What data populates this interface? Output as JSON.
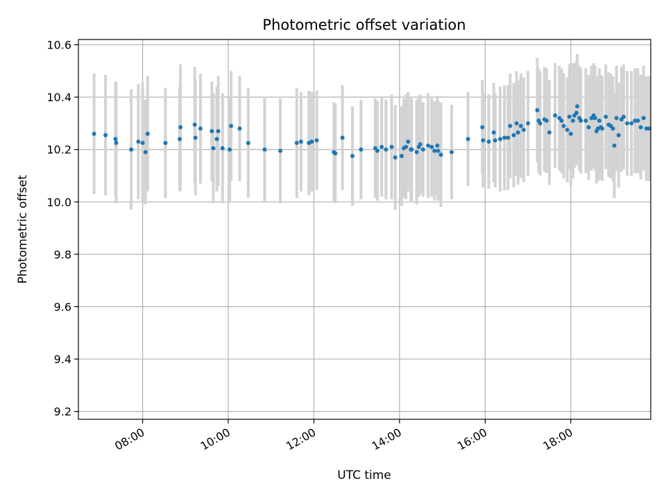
{
  "chart_data": {
    "type": "scatter",
    "title": "Photometric offset variation",
    "xlabel": "UTC time",
    "ylabel": "Photometric offset",
    "x_unit": "hours UTC",
    "xlim": [
      "06:30",
      "19:52"
    ],
    "ylim": [
      9.17,
      10.62
    ],
    "x_ticks": [
      "08:00",
      "10:00",
      "12:00",
      "14:00",
      "16:00",
      "18:00"
    ],
    "y_ticks": [
      "9.2",
      "9.4",
      "9.6",
      "9.8",
      "10.0",
      "10.2",
      "10.4",
      "10.6"
    ],
    "grid": true,
    "marker_color": "#1f77b4",
    "errorbar_color": "#d3d3d3",
    "points": [
      {
        "t": "06:52",
        "y": 10.26,
        "err": 0.23
      },
      {
        "t": "07:08",
        "y": 10.255,
        "err": 0.23
      },
      {
        "t": "07:22",
        "y": 10.24,
        "err": 0.22
      },
      {
        "t": "07:23",
        "y": 10.225,
        "err": 0.23
      },
      {
        "t": "07:44",
        "y": 10.2,
        "err": 0.23
      },
      {
        "t": "07:54",
        "y": 10.23,
        "err": 0.22
      },
      {
        "t": "08:00",
        "y": 10.225,
        "err": 0.23
      },
      {
        "t": "08:04",
        "y": 10.19,
        "err": 0.2
      },
      {
        "t": "08:07",
        "y": 10.26,
        "err": 0.22
      },
      {
        "t": "08:32",
        "y": 10.225,
        "err": 0.21
      },
      {
        "t": "08:52",
        "y": 10.24,
        "err": 0.2
      },
      {
        "t": "08:53",
        "y": 10.285,
        "err": 0.24
      },
      {
        "t": "09:13",
        "y": 10.295,
        "err": 0.22
      },
      {
        "t": "09:14",
        "y": 10.245,
        "err": 0.22
      },
      {
        "t": "09:21",
        "y": 10.28,
        "err": 0.21
      },
      {
        "t": "09:37",
        "y": 10.27,
        "err": 0.19
      },
      {
        "t": "09:39",
        "y": 10.205,
        "err": 0.21
      },
      {
        "t": "09:44",
        "y": 10.24,
        "err": 0.2
      },
      {
        "t": "09:46",
        "y": 10.27,
        "err": 0.21
      },
      {
        "t": "09:52",
        "y": 10.205,
        "err": 0.21
      },
      {
        "t": "10:02",
        "y": 10.2,
        "err": 0.2
      },
      {
        "t": "10:04",
        "y": 10.29,
        "err": 0.21
      },
      {
        "t": "10:16",
        "y": 10.28,
        "err": 0.2
      },
      {
        "t": "10:28",
        "y": 10.225,
        "err": 0.21
      },
      {
        "t": "10:51",
        "y": 10.2,
        "err": 0.2
      },
      {
        "t": "11:13",
        "y": 10.195,
        "err": 0.2
      },
      {
        "t": "11:36",
        "y": 10.225,
        "err": 0.21
      },
      {
        "t": "11:42",
        "y": 10.23,
        "err": 0.19
      },
      {
        "t": "11:53",
        "y": 10.225,
        "err": 0.2
      },
      {
        "t": "11:57",
        "y": 10.23,
        "err": 0.19
      },
      {
        "t": "12:04",
        "y": 10.235,
        "err": 0.19
      },
      {
        "t": "12:28",
        "y": 10.19,
        "err": 0.19
      },
      {
        "t": "12:30",
        "y": 10.185,
        "err": 0.19
      },
      {
        "t": "12:40",
        "y": 10.245,
        "err": 0.2
      },
      {
        "t": "12:54",
        "y": 10.175,
        "err": 0.19
      },
      {
        "t": "13:06",
        "y": 10.2,
        "err": 0.19
      },
      {
        "t": "13:26",
        "y": 10.205,
        "err": 0.19
      },
      {
        "t": "13:29",
        "y": 10.195,
        "err": 0.19
      },
      {
        "t": "13:35",
        "y": 10.21,
        "err": 0.19
      },
      {
        "t": "13:41",
        "y": 10.2,
        "err": 0.19
      },
      {
        "t": "13:49",
        "y": 10.21,
        "err": 0.2
      },
      {
        "t": "13:54",
        "y": 10.17,
        "err": 0.2
      },
      {
        "t": "14:03",
        "y": 10.175,
        "err": 0.19
      },
      {
        "t": "14:06",
        "y": 10.205,
        "err": 0.19
      },
      {
        "t": "14:09",
        "y": 10.21,
        "err": 0.2
      },
      {
        "t": "14:12",
        "y": 10.23,
        "err": 0.19
      },
      {
        "t": "14:16",
        "y": 10.2,
        "err": 0.2
      },
      {
        "t": "14:17",
        "y": 10.2,
        "err": 0.19
      },
      {
        "t": "14:24",
        "y": 10.19,
        "err": 0.2
      },
      {
        "t": "14:27",
        "y": 10.21,
        "err": 0.19
      },
      {
        "t": "14:29",
        "y": 10.22,
        "err": 0.19
      },
      {
        "t": "14:33",
        "y": 10.2,
        "err": 0.18
      },
      {
        "t": "14:40",
        "y": 10.215,
        "err": 0.2
      },
      {
        "t": "14:45",
        "y": 10.21,
        "err": 0.19
      },
      {
        "t": "14:49",
        "y": 10.195,
        "err": 0.19
      },
      {
        "t": "14:53",
        "y": 10.215,
        "err": 0.19
      },
      {
        "t": "14:54",
        "y": 10.195,
        "err": 0.19
      },
      {
        "t": "14:58",
        "y": 10.18,
        "err": 0.2
      },
      {
        "t": "15:13",
        "y": 10.19,
        "err": 0.18
      },
      {
        "t": "15:36",
        "y": 10.24,
        "err": 0.18
      },
      {
        "t": "15:56",
        "y": 10.285,
        "err": 0.18
      },
      {
        "t": "15:57",
        "y": 10.235,
        "err": 0.18
      },
      {
        "t": "16:05",
        "y": 10.23,
        "err": 0.18
      },
      {
        "t": "16:12",
        "y": 10.265,
        "err": 0.19
      },
      {
        "t": "16:14",
        "y": 10.235,
        "err": 0.18
      },
      {
        "t": "16:21",
        "y": 10.24,
        "err": 0.2
      },
      {
        "t": "16:27",
        "y": 10.245,
        "err": 0.2
      },
      {
        "t": "16:32",
        "y": 10.245,
        "err": 0.2
      },
      {
        "t": "16:35",
        "y": 10.29,
        "err": 0.2
      },
      {
        "t": "16:40",
        "y": 10.255,
        "err": 0.2
      },
      {
        "t": "16:44",
        "y": 10.3,
        "err": 0.2
      },
      {
        "t": "16:46",
        "y": 10.265,
        "err": 0.2
      },
      {
        "t": "16:50",
        "y": 10.29,
        "err": 0.2
      },
      {
        "t": "16:54",
        "y": 10.275,
        "err": 0.2
      },
      {
        "t": "17:00",
        "y": 10.3,
        "err": 0.2
      },
      {
        "t": "17:13",
        "y": 10.35,
        "err": 0.2
      },
      {
        "t": "17:15",
        "y": 10.31,
        "err": 0.2
      },
      {
        "t": "17:17",
        "y": 10.3,
        "err": 0.2
      },
      {
        "t": "17:23",
        "y": 10.315,
        "err": 0.2
      },
      {
        "t": "17:26",
        "y": 10.31,
        "err": 0.2
      },
      {
        "t": "17:30",
        "y": 10.265,
        "err": 0.2
      },
      {
        "t": "17:38",
        "y": 10.33,
        "err": 0.2
      },
      {
        "t": "17:44",
        "y": 10.32,
        "err": 0.2
      },
      {
        "t": "17:47",
        "y": 10.31,
        "err": 0.2
      },
      {
        "t": "17:50",
        "y": 10.29,
        "err": 0.2
      },
      {
        "t": "17:55",
        "y": 10.275,
        "err": 0.2
      },
      {
        "t": "17:58",
        "y": 10.325,
        "err": 0.2
      },
      {
        "t": "18:00",
        "y": 10.26,
        "err": 0.2
      },
      {
        "t": "18:03",
        "y": 10.31,
        "err": 0.22
      },
      {
        "t": "18:05",
        "y": 10.33,
        "err": 0.2
      },
      {
        "t": "18:08",
        "y": 10.34,
        "err": 0.2
      },
      {
        "t": "18:09",
        "y": 10.365,
        "err": 0.2
      },
      {
        "t": "18:12",
        "y": 10.32,
        "err": 0.2
      },
      {
        "t": "18:14",
        "y": 10.31,
        "err": 0.2
      },
      {
        "t": "18:21",
        "y": 10.31,
        "err": 0.2
      },
      {
        "t": "18:25",
        "y": 10.285,
        "err": 0.2
      },
      {
        "t": "18:29",
        "y": 10.32,
        "err": 0.2
      },
      {
        "t": "18:32",
        "y": 10.33,
        "err": 0.2
      },
      {
        "t": "18:34",
        "y": 10.32,
        "err": 0.2
      },
      {
        "t": "18:36",
        "y": 10.27,
        "err": 0.2
      },
      {
        "t": "18:38",
        "y": 10.28,
        "err": 0.2
      },
      {
        "t": "18:40",
        "y": 10.31,
        "err": 0.2
      },
      {
        "t": "18:42",
        "y": 10.285,
        "err": 0.2
      },
      {
        "t": "18:44",
        "y": 10.28,
        "err": 0.2
      },
      {
        "t": "18:49",
        "y": 10.325,
        "err": 0.2
      },
      {
        "t": "18:53",
        "y": 10.295,
        "err": 0.2
      },
      {
        "t": "18:56",
        "y": 10.29,
        "err": 0.2
      },
      {
        "t": "18:59",
        "y": 10.28,
        "err": 0.2
      },
      {
        "t": "19:01",
        "y": 10.215,
        "err": 0.2
      },
      {
        "t": "19:04",
        "y": 10.32,
        "err": 0.2
      },
      {
        "t": "19:07",
        "y": 10.255,
        "err": 0.2
      },
      {
        "t": "19:11",
        "y": 10.315,
        "err": 0.2
      },
      {
        "t": "19:14",
        "y": 10.325,
        "err": 0.2
      },
      {
        "t": "19:19",
        "y": 10.3,
        "err": 0.2
      },
      {
        "t": "19:25",
        "y": 10.3,
        "err": 0.2
      },
      {
        "t": "19:30",
        "y": 10.31,
        "err": 0.2
      },
      {
        "t": "19:34",
        "y": 10.31,
        "err": 0.2
      },
      {
        "t": "19:38",
        "y": 10.285,
        "err": 0.2
      },
      {
        "t": "19:42",
        "y": 10.32,
        "err": 0.2
      },
      {
        "t": "19:46",
        "y": 10.28,
        "err": 0.2
      },
      {
        "t": "19:50",
        "y": 10.28,
        "err": 0.2
      }
    ]
  }
}
